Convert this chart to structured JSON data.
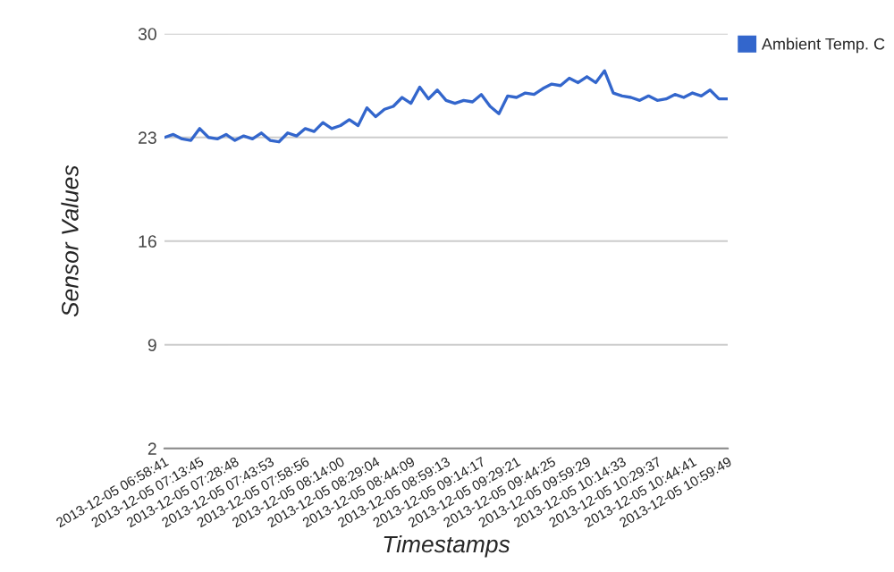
{
  "chart_data": {
    "type": "line",
    "xlabel": "Timestamps",
    "ylabel": "Sensor Values",
    "categories": [
      "2013-12-05 06:58:41",
      null,
      null,
      null,
      "2013-12-05 07:13:45",
      null,
      null,
      null,
      "2013-12-05 07:28:48",
      null,
      null,
      null,
      "2013-12-05 07:43:53",
      null,
      null,
      null,
      "2013-12-05 07:58:56",
      null,
      null,
      null,
      "2013-12-05 08:14:00",
      null,
      null,
      null,
      "2013-12-05 08:29:04",
      null,
      null,
      null,
      "2013-12-05 08:44:09",
      null,
      null,
      null,
      "2013-12-05 08:59:13",
      null,
      null,
      null,
      "2013-12-05 09:14:17",
      null,
      null,
      null,
      "2013-12-05 09:29:21",
      null,
      null,
      null,
      "2013-12-05 09:44:25",
      null,
      null,
      null,
      "2013-12-05 09:59:29",
      null,
      null,
      null,
      "2013-12-05 10:14:33",
      null,
      null,
      null,
      "2013-12-05 10:29:37",
      null,
      null,
      null,
      "2013-12-05 10:44:41",
      null,
      null,
      null,
      "2013-12-05 10:59:49"
    ],
    "series": [
      {
        "name": "Ambient Temp. C",
        "color": "#3366cc",
        "values": [
          23.0,
          23.2,
          22.9,
          22.8,
          23.6,
          23.0,
          22.9,
          23.2,
          22.8,
          23.1,
          22.9,
          23.3,
          22.8,
          22.7,
          23.3,
          23.1,
          23.6,
          23.4,
          24.0,
          23.6,
          23.8,
          24.2,
          23.8,
          25.0,
          24.4,
          24.9,
          25.1,
          25.7,
          25.3,
          26.4,
          25.6,
          26.2,
          25.5,
          25.3,
          25.5,
          25.4,
          25.9,
          25.1,
          24.6,
          25.8,
          25.7,
          26.0,
          25.9,
          26.3,
          26.6,
          26.5,
          27.0,
          26.7,
          27.1,
          26.7,
          27.5,
          26.0,
          25.8,
          25.7,
          25.5,
          25.8,
          25.5,
          25.6,
          25.9,
          25.7,
          26.0,
          25.8,
          26.2,
          25.6,
          25.6
        ]
      }
    ],
    "ylim": [
      2,
      30
    ],
    "yticks": [
      2,
      9,
      16,
      23,
      30
    ],
    "grid": "y",
    "legend": "top right",
    "marker": "none",
    "line_style": "solid"
  }
}
